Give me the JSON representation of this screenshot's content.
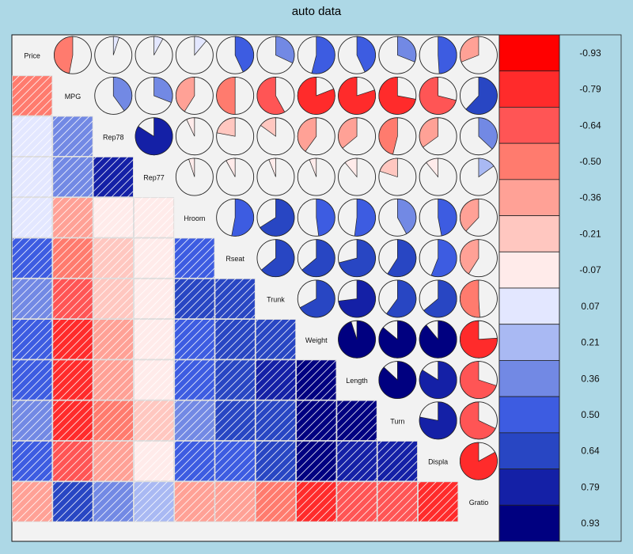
{
  "chart_data": {
    "type": "heatmap",
    "title": "auto data",
    "variables": [
      "Price",
      "MPG",
      "Rep78",
      "Rep77",
      "Hroom",
      "Rseat",
      "Trunk",
      "Weight",
      "Length",
      "Turn",
      "Displa",
      "Gratio"
    ],
    "lower_panel": "shade",
    "upper_panel": "pie",
    "matrix": [
      [
        1.0,
        -0.47,
        0.05,
        0.08,
        0.11,
        0.43,
        0.32,
        0.54,
        0.43,
        0.31,
        0.49,
        -0.31
      ],
      [
        -0.47,
        1.0,
        0.4,
        0.31,
        -0.41,
        -0.5,
        -0.58,
        -0.81,
        -0.8,
        -0.72,
        -0.71,
        0.62
      ],
      [
        0.05,
        0.4,
        1.0,
        0.84,
        -0.07,
        -0.22,
        -0.15,
        -0.4,
        -0.36,
        -0.46,
        -0.35,
        0.37
      ],
      [
        0.08,
        0.31,
        0.84,
        1.0,
        -0.05,
        -0.08,
        -0.06,
        -0.06,
        -0.11,
        -0.2,
        -0.11,
        0.15
      ],
      [
        0.11,
        -0.41,
        -0.07,
        -0.05,
        1.0,
        0.53,
        0.66,
        0.48,
        0.52,
        0.42,
        0.47,
        -0.38
      ],
      [
        0.43,
        -0.5,
        -0.22,
        -0.08,
        0.53,
        1.0,
        0.64,
        0.64,
        0.71,
        0.59,
        0.56,
        -0.41
      ],
      [
        0.32,
        -0.58,
        -0.15,
        -0.06,
        0.66,
        0.64,
        1.0,
        0.67,
        0.73,
        0.6,
        0.64,
        -0.51
      ],
      [
        0.54,
        -0.81,
        -0.4,
        -0.06,
        0.48,
        0.64,
        0.67,
        1.0,
        0.95,
        0.86,
        0.89,
        -0.76
      ],
      [
        0.43,
        -0.8,
        -0.36,
        -0.11,
        0.52,
        0.71,
        0.73,
        0.95,
        1.0,
        0.87,
        0.84,
        -0.7
      ],
      [
        0.31,
        -0.72,
        -0.46,
        -0.2,
        0.42,
        0.59,
        0.6,
        0.86,
        0.87,
        1.0,
        0.78,
        -0.68
      ],
      [
        0.49,
        -0.71,
        -0.35,
        -0.11,
        0.47,
        0.56,
        0.64,
        0.89,
        0.84,
        0.78,
        1.0,
        -0.83
      ],
      [
        -0.31,
        0.62,
        0.37,
        0.15,
        -0.38,
        -0.41,
        -0.51,
        -0.76,
        -0.7,
        -0.68,
        -0.83,
        1.0
      ]
    ],
    "color_scale": {
      "labels": [
        "-0.93",
        "-0.79",
        "-0.64",
        "-0.50",
        "-0.36",
        "-0.21",
        "-0.07",
        "0.07",
        "0.21",
        "0.36",
        "0.50",
        "0.64",
        "0.79",
        "0.93"
      ],
      "colors": [
        "#ff0000",
        "#ff2b2b",
        "#ff5555",
        "#ff7b6e",
        "#ffa196",
        "#ffc7c0",
        "#ffebea",
        "#e3e7ff",
        "#a9b9f3",
        "#7289e4",
        "#3d5ce1",
        "#2846c3",
        "#1420a6",
        "#000080"
      ]
    },
    "grid": false,
    "legend": "right"
  }
}
